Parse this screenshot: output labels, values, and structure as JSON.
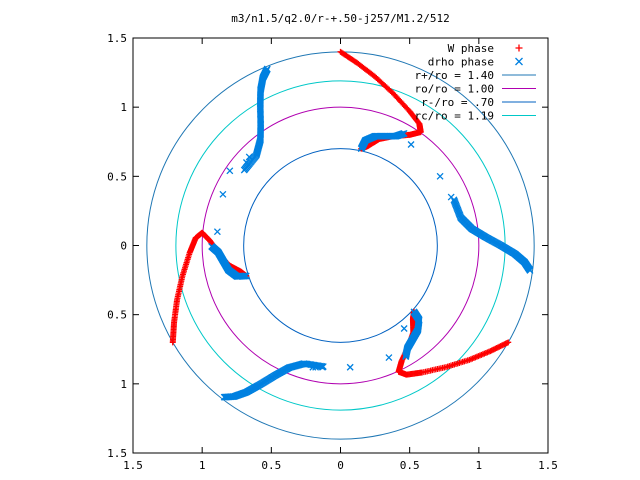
{
  "chart_data": {
    "type": "scatter",
    "title": "m3/n1.5/q2.0/r-+.50-j257/M1.2/512",
    "xlabel": "",
    "ylabel": "",
    "xlim": [
      -1.5,
      1.5
    ],
    "ylim": [
      -1.5,
      1.5
    ],
    "x_ticks": [
      -1.5,
      -1,
      -0.5,
      0,
      0.5,
      1,
      1.5
    ],
    "y_ticks": [
      -1.5,
      -1,
      -0.5,
      0,
      0.5,
      1,
      1.5
    ],
    "x_tick_labels": [
      "1.5",
      "1",
      "0.5",
      "0",
      "0.5",
      "1",
      "1.5"
    ],
    "y_tick_labels": [
      "1.5",
      "1",
      "0.5",
      "0",
      "0.5",
      "1",
      "1.5"
    ],
    "grid": false,
    "legend_position": "top-right",
    "arms": 3,
    "series": [
      {
        "name": "W phase",
        "marker": "plus",
        "color": "#ff0000",
        "arm_points": [
          [
            0.0,
            1.4
          ],
          [
            0.12,
            1.32
          ],
          [
            0.25,
            1.22
          ],
          [
            0.38,
            1.1
          ],
          [
            0.5,
            0.97
          ],
          [
            0.57,
            0.88
          ],
          [
            0.58,
            0.82
          ],
          [
            0.5,
            0.8
          ],
          [
            0.38,
            0.79
          ],
          [
            0.28,
            0.77
          ],
          [
            0.2,
            0.72
          ],
          [
            0.15,
            0.7
          ]
        ],
        "extra_points": []
      },
      {
        "name": "drho phase",
        "marker": "cross",
        "color": "#0080e0",
        "arm_points": [
          [
            0.15,
            0.7
          ],
          [
            0.18,
            0.76
          ],
          [
            0.25,
            0.79
          ],
          [
            0.33,
            0.79
          ],
          [
            0.4,
            0.79
          ],
          [
            0.46,
            0.81
          ]
        ],
        "arm_points_outer": [
          [
            0.82,
            0.33
          ],
          [
            0.87,
            0.2
          ],
          [
            0.95,
            0.12
          ],
          [
            1.05,
            0.06
          ],
          [
            1.16,
            0.0
          ],
          [
            1.26,
            -0.06
          ],
          [
            1.33,
            -0.12
          ],
          [
            1.37,
            -0.18
          ]
        ],
        "extra_points": [
          [
            0.51,
            0.73
          ],
          [
            0.72,
            0.5
          ],
          [
            0.8,
            0.35
          ],
          [
            -0.85,
            0.37
          ],
          [
            -0.8,
            0.54
          ],
          [
            -0.68,
            0.6
          ],
          [
            -0.66,
            0.64
          ],
          [
            -0.89,
            0.1
          ],
          [
            -0.13,
            -0.88
          ],
          [
            -0.18,
            -0.88
          ],
          [
            -0.2,
            -0.88
          ],
          [
            0.07,
            -0.88
          ],
          [
            0.35,
            -0.81
          ],
          [
            0.46,
            -0.6
          ]
        ]
      }
    ],
    "circles": [
      {
        "name": "r+/ro = 1.40",
        "radius": 1.4,
        "color": "#1f77b4"
      },
      {
        "name": "ro/ro = 1.00",
        "radius": 1.0,
        "color": "#b000b0"
      },
      {
        "name": "r-/ro = .70",
        "radius": 0.7,
        "color": "#0060c0"
      },
      {
        "name": "rc/ro = 1.19",
        "radius": 1.19,
        "color": "#00c8c8"
      }
    ]
  }
}
